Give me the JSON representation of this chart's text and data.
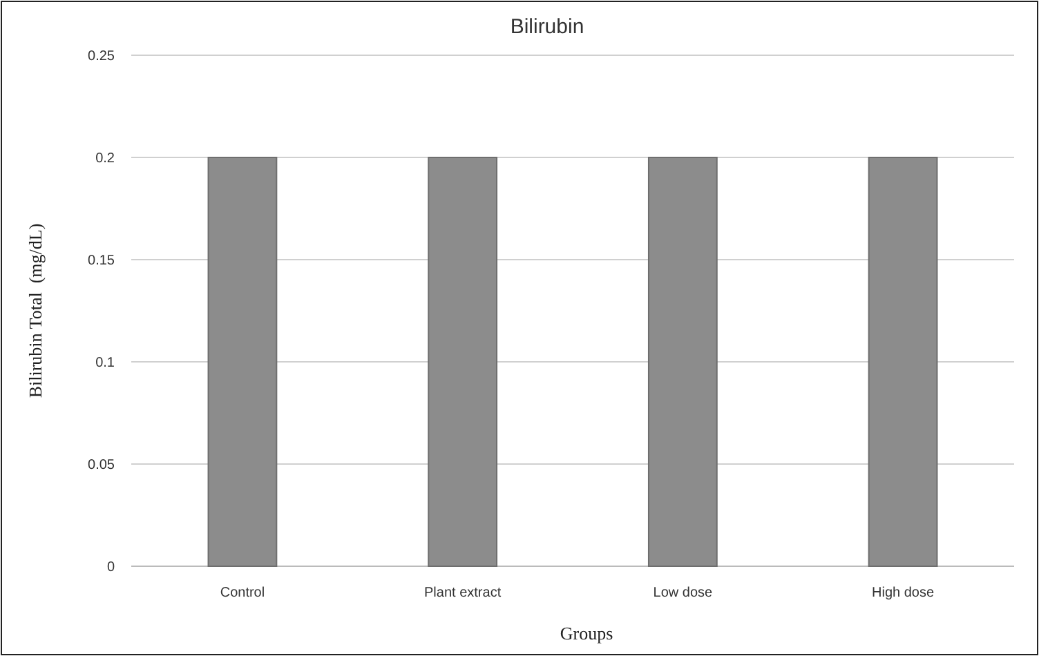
{
  "chart_data": {
    "type": "bar",
    "title": "Bilirubin",
    "xlabel": "Groups",
    "ylabel": "Bilirubin Total  (mg/dL)",
    "categories": [
      "Control",
      "Plant extract",
      "Low dose",
      "High dose"
    ],
    "values": [
      0.2,
      0.2,
      0.2,
      0.2
    ],
    "color": "#8c8c8c",
    "ylim": [
      0,
      0.25
    ],
    "yticks": [
      0,
      0.05,
      {
        "value": 0.1,
        "label": "0.1"
      },
      0.15,
      {
        "value": 0.2,
        "label": "0.2"
      },
      0.25
    ],
    "grid": "y"
  }
}
